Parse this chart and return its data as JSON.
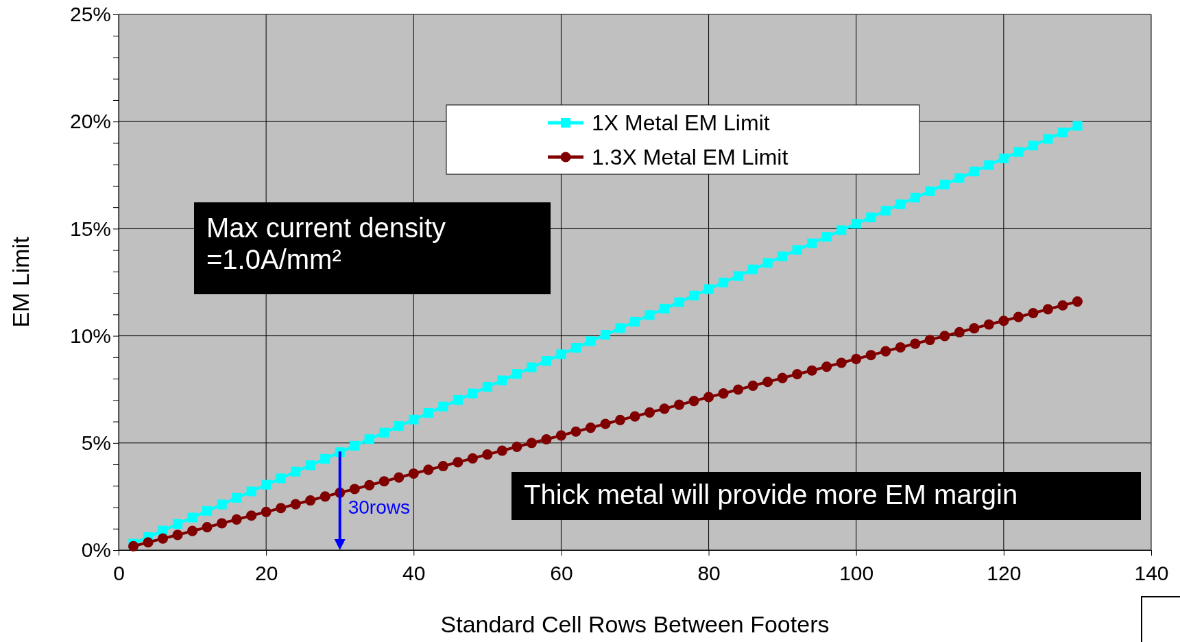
{
  "chart_data": {
    "type": "line",
    "xlabel": "Standard Cell Rows Between Footers",
    "ylabel": "EM Limit",
    "x": [
      2,
      4,
      6,
      8,
      10,
      12,
      14,
      16,
      18,
      20,
      22,
      24,
      26,
      28,
      30,
      32,
      34,
      36,
      38,
      40,
      42,
      44,
      46,
      48,
      50,
      52,
      54,
      56,
      58,
      60,
      62,
      64,
      66,
      68,
      70,
      72,
      74,
      76,
      78,
      80,
      82,
      84,
      86,
      88,
      90,
      92,
      94,
      96,
      98,
      100,
      102,
      104,
      106,
      108,
      110,
      112,
      114,
      116,
      118,
      120,
      122,
      124,
      126,
      128,
      130
    ],
    "series": [
      {
        "name": "1X Metal EM Limit",
        "color": "#00ffff",
        "marker": "square",
        "values": [
          0.3,
          0.61,
          0.91,
          1.22,
          1.52,
          1.83,
          2.13,
          2.44,
          2.74,
          3.05,
          3.35,
          3.66,
          3.96,
          4.26,
          4.57,
          4.87,
          5.18,
          5.48,
          5.79,
          6.09,
          6.4,
          6.7,
          7.01,
          7.31,
          7.62,
          7.92,
          8.22,
          8.53,
          8.83,
          9.14,
          9.44,
          9.75,
          10.05,
          10.36,
          10.66,
          10.97,
          11.27,
          11.57,
          11.88,
          12.18,
          12.49,
          12.79,
          13.1,
          13.4,
          13.71,
          14.01,
          14.32,
          14.62,
          14.93,
          15.23,
          15.53,
          15.84,
          16.14,
          16.45,
          16.75,
          17.06,
          17.36,
          17.67,
          17.97,
          18.28,
          18.58,
          18.88,
          19.19,
          19.49,
          19.8
        ]
      },
      {
        "name": "1.3X Metal EM Limit",
        "color": "#800000",
        "marker": "circle",
        "values": [
          0.18,
          0.36,
          0.54,
          0.71,
          0.89,
          1.07,
          1.25,
          1.43,
          1.61,
          1.78,
          1.96,
          2.14,
          2.32,
          2.5,
          2.68,
          2.85,
          3.03,
          3.21,
          3.39,
          3.57,
          3.75,
          3.92,
          4.1,
          4.28,
          4.46,
          4.64,
          4.82,
          5.0,
          5.17,
          5.35,
          5.53,
          5.71,
          5.89,
          6.07,
          6.24,
          6.42,
          6.6,
          6.78,
          6.96,
          7.14,
          7.31,
          7.49,
          7.67,
          7.85,
          8.03,
          8.21,
          8.38,
          8.56,
          8.74,
          8.92,
          9.1,
          9.28,
          9.46,
          9.63,
          9.81,
          9.99,
          10.17,
          10.35,
          10.53,
          10.7,
          10.88,
          11.06,
          11.24,
          11.42,
          11.6
        ]
      }
    ],
    "xlim": [
      0,
      140
    ],
    "xticks": [
      0,
      20,
      40,
      60,
      80,
      100,
      120,
      140
    ],
    "ylim": [
      0,
      25
    ],
    "yticks": [
      {
        "value": 0,
        "label": "0%"
      },
      {
        "value": 1,
        "label": null
      },
      {
        "value": 2,
        "label": null
      },
      {
        "value": 3,
        "label": null
      },
      {
        "value": 4,
        "label": null
      },
      {
        "value": 5,
        "label": "5%"
      },
      {
        "value": 6,
        "label": null
      },
      {
        "value": 7,
        "label": null
      },
      {
        "value": 8,
        "label": null
      },
      {
        "value": 9,
        "label": null
      },
      {
        "value": 10,
        "label": "10%"
      },
      {
        "value": 11,
        "label": null
      },
      {
        "value": 12,
        "label": null
      },
      {
        "value": 13,
        "label": null
      },
      {
        "value": 14,
        "label": null
      },
      {
        "value": 15,
        "label": "15%"
      },
      {
        "value": 16,
        "label": null
      },
      {
        "value": 17,
        "label": null
      },
      {
        "value": 18,
        "label": null
      },
      {
        "value": 19,
        "label": null
      },
      {
        "value": 20,
        "label": "20%"
      },
      {
        "value": 21,
        "label": null
      },
      {
        "value": 22,
        "label": null
      },
      {
        "value": 23,
        "label": null
      },
      {
        "value": 24,
        "label": null
      },
      {
        "value": 25,
        "label": "25%"
      }
    ],
    "grid": true,
    "legend": "top",
    "annotations": [
      "Max current density =1.0A/mm²",
      "Thick metal will provide more EM margin",
      {
        "text": "30rows",
        "x": 30,
        "y": 4.6
      }
    ]
  }
}
